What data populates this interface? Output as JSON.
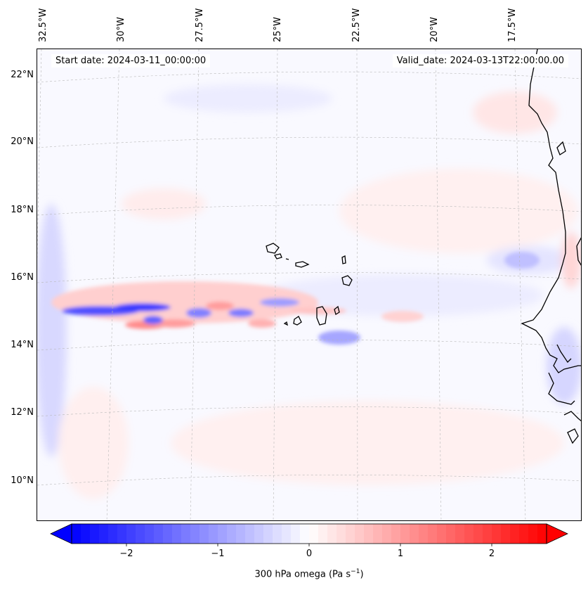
{
  "map": {
    "start_date": "Start date: 2024-03-11_00:00:00",
    "valid_date": "Valid_date: 2024-03-13T22:00:00.00",
    "lon_labels": [
      "32.5°W",
      "30°W",
      "27.5°W",
      "25°W",
      "22.5°W",
      "20°W",
      "17.5°W"
    ],
    "lat_labels": [
      "22°N",
      "20°N",
      "18°N",
      "16°N",
      "14°N",
      "12°N",
      "10°N"
    ],
    "colors": {
      "negative": "#0000ff",
      "positive": "#ff0000",
      "neutral": "#ffffff",
      "coast": "#000000",
      "grid": "#b0b0b0"
    }
  },
  "colorbar": {
    "label_prefix": "300 hPa omega (Pa s",
    "label_exp": "−1",
    "label_suffix": ")",
    "ticks": [
      "−2",
      "−1",
      "0",
      "1",
      "2"
    ],
    "tick_values": [
      -2,
      -1,
      0,
      1,
      2
    ],
    "vmin": -2.6,
    "vmax": 2.6,
    "levels": 52
  }
}
